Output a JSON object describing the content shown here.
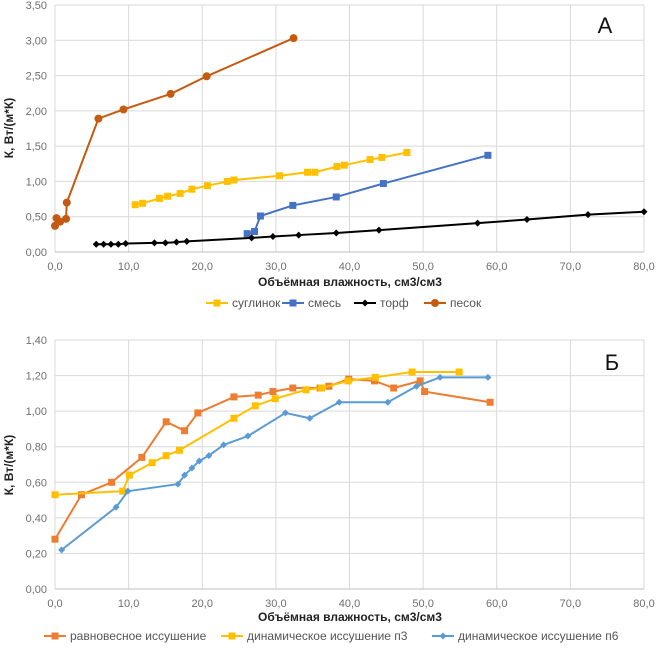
{
  "chart_data": [
    {
      "type": "line",
      "panel_label": "А",
      "xlabel": "Объёмная влажность, см3/см3",
      "ylabel": "К, Вт/(м*К)",
      "xlim": [
        0,
        80
      ],
      "ylim": [
        0,
        3.5
      ],
      "xticks": [
        "0,0",
        "10,0",
        "20,0",
        "30,0",
        "40,0",
        "50,0",
        "60,0",
        "70,0",
        "80,0"
      ],
      "yticks": [
        "0,00",
        "0,50",
        "1,00",
        "1,50",
        "2,00",
        "2,50",
        "3,00",
        "3,50"
      ],
      "grid": true,
      "legend_position": "bottom",
      "series": [
        {
          "name": "суглинок",
          "color": "#FFC000",
          "marker": "square",
          "x": [
            10.9,
            11.9,
            14.2,
            15.3,
            17.0,
            18.6,
            20.7,
            23.4,
            24.3,
            30.5,
            34.3,
            35.3,
            38.3,
            39.3,
            42.8,
            44.4,
            47.8
          ],
          "y": [
            0.67,
            0.69,
            0.76,
            0.79,
            0.83,
            0.89,
            0.94,
            1.0,
            1.02,
            1.08,
            1.13,
            1.13,
            1.21,
            1.23,
            1.31,
            1.34,
            1.41
          ]
        },
        {
          "name": "смесь",
          "color": "#4472C4",
          "marker": "square",
          "x": [
            26.1,
            27.1,
            27.9,
            32.3,
            38.2,
            44.6,
            58.8
          ],
          "y": [
            0.26,
            0.29,
            0.51,
            0.66,
            0.78,
            0.97,
            1.37
          ]
        },
        {
          "name": "торф",
          "color": "#000000",
          "marker": "diamond",
          "x": [
            5.6,
            6.6,
            7.6,
            8.6,
            9.6,
            13.5,
            15.0,
            16.5,
            17.9,
            26.7,
            29.6,
            33.1,
            38.2,
            44.0,
            57.4,
            64.1,
            72.4,
            80.0
          ],
          "y": [
            0.11,
            0.11,
            0.11,
            0.11,
            0.12,
            0.13,
            0.13,
            0.14,
            0.15,
            0.2,
            0.22,
            0.24,
            0.27,
            0.31,
            0.41,
            0.46,
            0.53,
            0.57
          ]
        },
        {
          "name": "песок",
          "color": "#C55A11",
          "marker": "circle",
          "x": [
            0.0,
            0.2,
            0.7,
            1.5,
            1.6,
            5.9,
            9.3,
            15.7,
            20.6,
            32.4
          ],
          "y": [
            0.37,
            0.48,
            0.43,
            0.47,
            0.7,
            1.89,
            2.02,
            2.24,
            2.49,
            3.03
          ]
        }
      ]
    },
    {
      "type": "line",
      "panel_label": "Б",
      "xlabel": "Объёмная влажность, см3/см3",
      "ylabel": "К, Вт/(м*К)",
      "xlim": [
        0,
        80
      ],
      "ylim": [
        0,
        1.4
      ],
      "xticks": [
        "0,0",
        "10,0",
        "20,0",
        "30,0",
        "40,0",
        "50,0",
        "60,0",
        "70,0",
        "80,0"
      ],
      "yticks": [
        "0,00",
        "0,20",
        "0,40",
        "0,60",
        "0,80",
        "1,00",
        "1,20",
        "1,40"
      ],
      "grid": true,
      "legend_position": "bottom",
      "series": [
        {
          "name": "равновесное иссушение",
          "color": "#ED7D31",
          "marker": "square",
          "x": [
            0.0,
            3.6,
            7.7,
            11.8,
            15.1,
            17.6,
            19.4,
            24.3,
            27.6,
            29.6,
            32.3,
            36.0,
            37.2,
            39.9,
            43.4,
            46.0,
            49.6,
            50.2,
            59.1
          ],
          "y": [
            0.28,
            0.53,
            0.6,
            0.74,
            0.94,
            0.89,
            0.99,
            1.08,
            1.09,
            1.11,
            1.13,
            1.13,
            1.14,
            1.18,
            1.17,
            1.13,
            1.17,
            1.11,
            1.05
          ]
        },
        {
          "name": "динамическое иссушение п3",
          "color": "#FFC000",
          "marker": "square",
          "x": [
            0.0,
            9.2,
            10.1,
            13.2,
            15.1,
            16.9,
            24.3,
            27.2,
            29.9,
            34.1,
            36.2,
            39.8,
            43.5,
            48.5,
            54.9
          ],
          "y": [
            0.53,
            0.55,
            0.64,
            0.71,
            0.75,
            0.78,
            0.96,
            1.03,
            1.07,
            1.12,
            1.13,
            1.17,
            1.19,
            1.22,
            1.22
          ]
        },
        {
          "name": "динамическое иссушение п6",
          "color": "#5B9BD5",
          "marker": "diamond",
          "x": [
            0.9,
            8.3,
            9.9,
            16.7,
            17.6,
            18.6,
            19.6,
            20.9,
            22.9,
            26.2,
            31.3,
            34.6,
            38.6,
            45.2,
            49.1,
            52.3,
            58.8
          ],
          "y": [
            0.22,
            0.46,
            0.55,
            0.59,
            0.64,
            0.68,
            0.72,
            0.75,
            0.81,
            0.86,
            0.99,
            0.96,
            1.05,
            1.05,
            1.14,
            1.19,
            1.19
          ]
        }
      ]
    }
  ]
}
